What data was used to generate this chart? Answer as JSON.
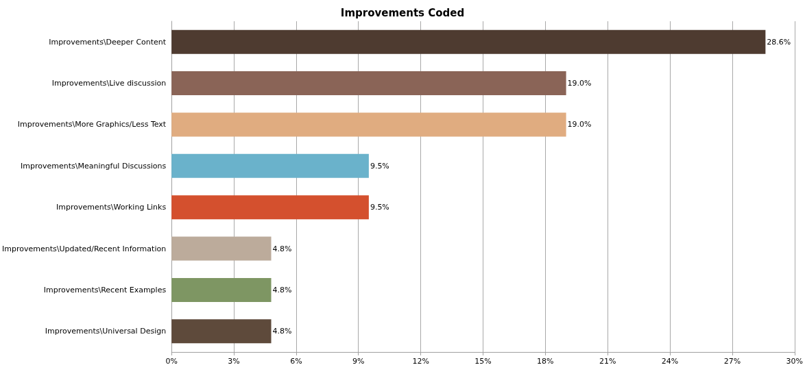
{
  "chart_data": {
    "type": "bar",
    "orientation": "horizontal",
    "title": "Improvements Coded",
    "categories": [
      "Improvements\\Deeper Content",
      "Improvements\\Live discussion",
      "Improvements\\More Graphics/Less Text",
      "Improvements\\Meaningful Discussions",
      "Improvements\\Working Links",
      "Improvements\\Updated/Recent Information",
      "Improvements\\Recent Examples",
      "Improvements\\Universal Design"
    ],
    "values": [
      28.6,
      19.0,
      19.0,
      9.5,
      9.5,
      4.8,
      4.8,
      4.8
    ],
    "colors": [
      "#4e3b30",
      "#8a6457",
      "#e0ac80",
      "#6ab2cb",
      "#d4502e",
      "#bcab9b",
      "#7e9663",
      "#5e4a3b"
    ],
    "value_labels": [
      "28.6%",
      "19.0%",
      "19.0%",
      "9.5%",
      "9.5%",
      "4.8%",
      "4.8%",
      "4.8%"
    ],
    "xlim": [
      0,
      30
    ],
    "xticks": [
      {
        "value": 0,
        "label": "0%"
      },
      {
        "value": 3,
        "label": "3%"
      },
      {
        "value": 6,
        "label": "6%"
      },
      {
        "value": 9,
        "label": "9%"
      },
      {
        "value": 12,
        "label": "12%"
      },
      {
        "value": 15,
        "label": "15%"
      },
      {
        "value": 18,
        "label": "18%"
      },
      {
        "value": 21,
        "label": "21%"
      },
      {
        "value": 24,
        "label": "24%"
      },
      {
        "value": 27,
        "label": "27%"
      },
      {
        "value": 30,
        "label": "30%"
      }
    ],
    "grid": "x"
  }
}
